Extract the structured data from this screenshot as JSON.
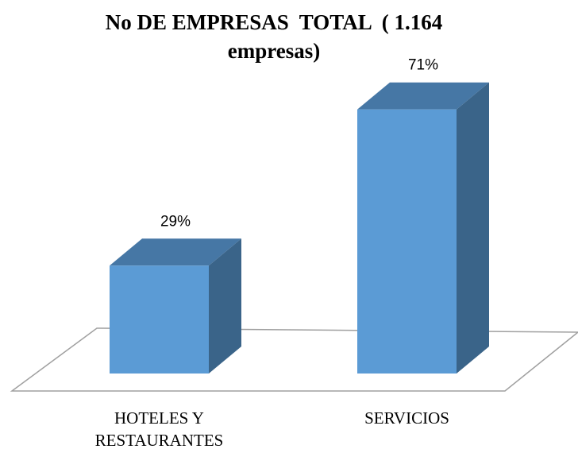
{
  "chart_data": {
    "type": "bar3d",
    "title": "No DE EMPRESAS  TOTAL  ( 1.164 empresas)",
    "categories": [
      "HOTELES Y RESTAURANTES",
      "SERVICIOS"
    ],
    "values": [
      29,
      71
    ],
    "value_labels": [
      "29%",
      "71%"
    ],
    "color": "#5b9bd5"
  }
}
